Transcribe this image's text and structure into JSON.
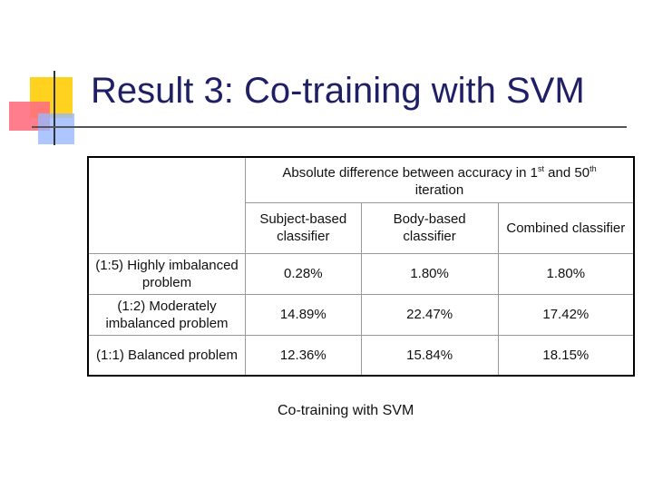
{
  "title": "Result 3: Co-training with SVM",
  "table": {
    "header": {
      "parts": [
        "Absolute difference between accuracy in 1",
        "st",
        "and 50",
        "th",
        "iteration"
      ]
    },
    "columns": [
      "Subject-based classifier",
      "Body-based classifier",
      "Combined classifier"
    ],
    "rows": [
      [
        "(1:5) Highly imbalanced problem",
        "0.28%",
        "1.80%",
        "1.80%"
      ],
      [
        "(1:2) Moderately imbalanced problem",
        "14.89%",
        "22.47%",
        "17.42%"
      ],
      [
        "(1:1) Balanced problem",
        "12.36%",
        "15.84%",
        "18.15%"
      ]
    ]
  },
  "caption": "Co-training with SVM"
}
